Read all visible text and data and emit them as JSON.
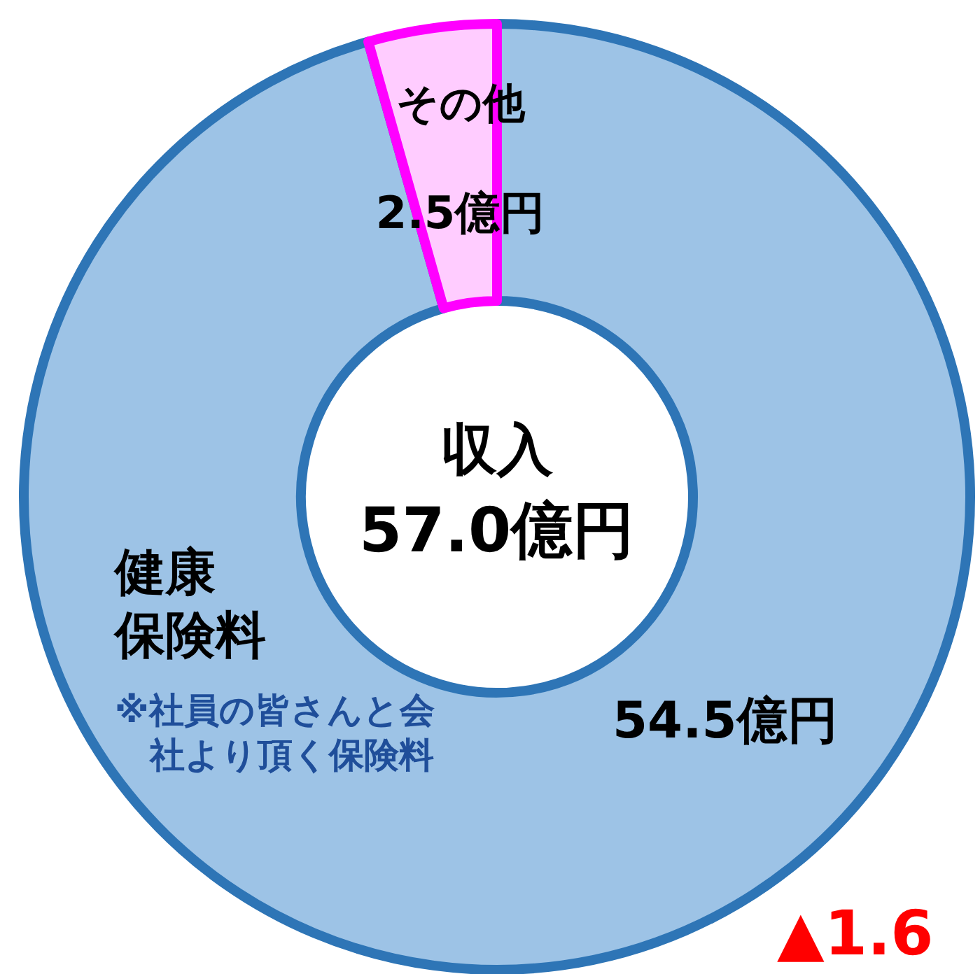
{
  "chart_data": {
    "type": "donut",
    "title": "収入",
    "subtitle": "57.0億円",
    "categories": [
      "健康保険料",
      "その他"
    ],
    "values": [
      54.5,
      2.5
    ],
    "value_labels": [
      "54.5億円",
      "2.5億円"
    ],
    "colors": [
      "#9dc3e6",
      "#ffccff"
    ],
    "annotations": [
      "※社員の皆さんと会社より頂く保険料",
      "▲1.6"
    ]
  }
}
